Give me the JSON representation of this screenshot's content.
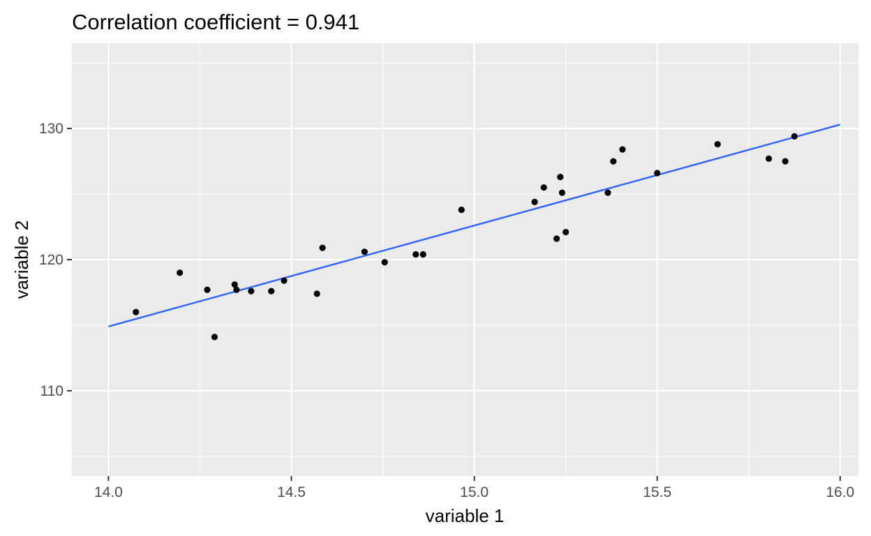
{
  "chart_data": {
    "type": "scatter",
    "title": "Correlation coefficient = 0.941",
    "xlabel": "variable 1",
    "ylabel": "variable 2",
    "xlim": [
      13.9,
      16.05
    ],
    "ylim": [
      103.5,
      136.5
    ],
    "x_ticks": [
      14.0,
      14.5,
      15.0,
      15.5,
      16.0
    ],
    "x_tick_labels": [
      "14.0",
      "14.5",
      "15.0",
      "15.5",
      "16.0"
    ],
    "y_ticks": [
      110,
      120,
      130
    ],
    "y_tick_labels": [
      "110",
      "120",
      "130"
    ],
    "grid": true,
    "legend": "none",
    "colors": {
      "panel": "#ebebeb",
      "grid": "#ffffff",
      "points": "#000000",
      "fit_line": "#3366ff"
    },
    "points": [
      {
        "x": 14.075,
        "y": 116.0
      },
      {
        "x": 14.195,
        "y": 119.0
      },
      {
        "x": 14.27,
        "y": 117.7
      },
      {
        "x": 14.29,
        "y": 114.1
      },
      {
        "x": 14.345,
        "y": 118.1
      },
      {
        "x": 14.35,
        "y": 117.7
      },
      {
        "x": 14.39,
        "y": 117.6
      },
      {
        "x": 14.445,
        "y": 117.6
      },
      {
        "x": 14.48,
        "y": 118.4
      },
      {
        "x": 14.57,
        "y": 117.4
      },
      {
        "x": 14.585,
        "y": 120.9
      },
      {
        "x": 14.7,
        "y": 120.6
      },
      {
        "x": 14.755,
        "y": 119.8
      },
      {
        "x": 14.84,
        "y": 120.4
      },
      {
        "x": 14.86,
        "y": 120.4
      },
      {
        "x": 14.965,
        "y": 123.8
      },
      {
        "x": 15.165,
        "y": 124.4
      },
      {
        "x": 15.19,
        "y": 125.5
      },
      {
        "x": 15.225,
        "y": 121.6
      },
      {
        "x": 15.235,
        "y": 126.3
      },
      {
        "x": 15.24,
        "y": 125.1
      },
      {
        "x": 15.25,
        "y": 122.1
      },
      {
        "x": 15.365,
        "y": 125.1
      },
      {
        "x": 15.38,
        "y": 127.5
      },
      {
        "x": 15.405,
        "y": 128.4
      },
      {
        "x": 15.5,
        "y": 126.6
      },
      {
        "x": 15.665,
        "y": 128.8
      },
      {
        "x": 15.805,
        "y": 127.7
      },
      {
        "x": 15.85,
        "y": 127.5
      },
      {
        "x": 15.875,
        "y": 129.4
      }
    ],
    "fit_line": {
      "x": [
        14.0,
        16.0
      ],
      "y": [
        114.9,
        130.3
      ]
    }
  }
}
